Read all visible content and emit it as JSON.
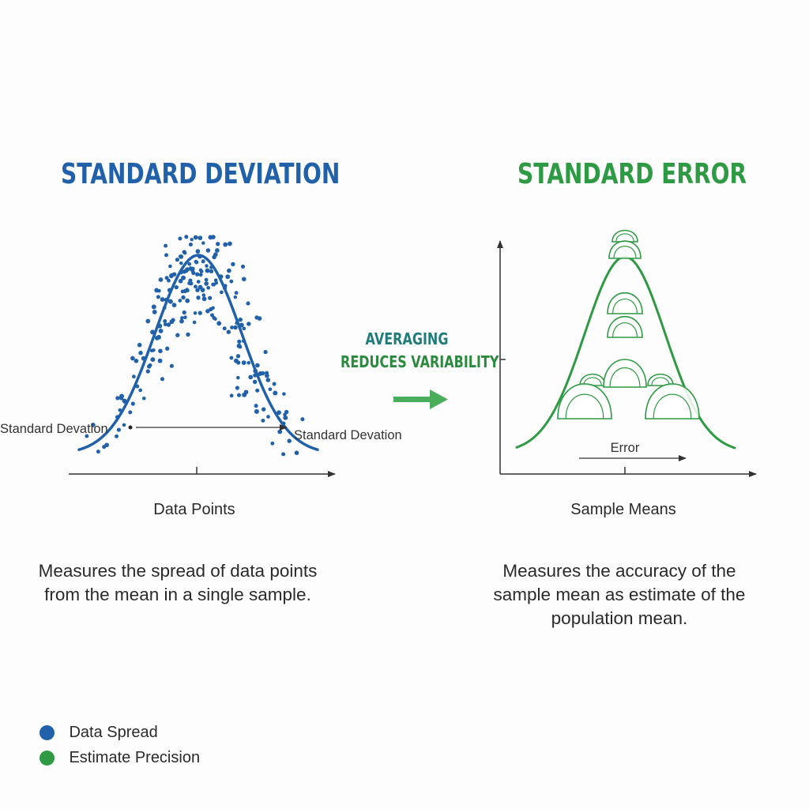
{
  "left_panel": {
    "title": "STANDARD DEVIATION",
    "axis_title": "Data Points",
    "arrow_label_left": "Standard Devation",
    "arrow_label_right": "Standard Devation",
    "description": "Measures the spread of data points from the mean in a single sample.",
    "color": "#2061aa"
  },
  "right_panel": {
    "title": "STANDARD ERROR",
    "axis_title": "Sample Means",
    "error_label": "Error",
    "description": "Measures the accuracy of the sample mean as estimate of the population mean.",
    "color": "#2f9a44"
  },
  "transition": {
    "line1": "AVERAGING",
    "line2": "REDUCES VARIABILITY",
    "arrow_color": "#4aad5b"
  },
  "legend": [
    {
      "label": "Data Spread",
      "color": "#2061aa"
    },
    {
      "label": "Estimate Precision",
      "color": "#2f9a44"
    }
  ]
}
